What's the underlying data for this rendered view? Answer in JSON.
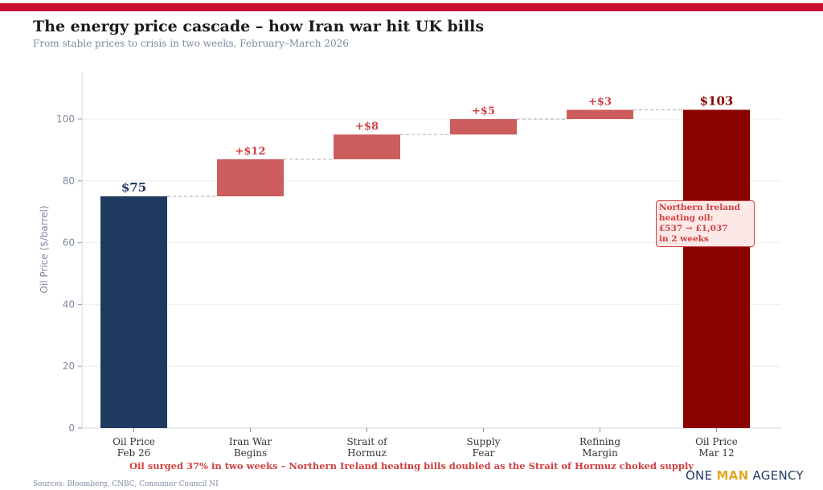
{
  "header": {
    "title": "The energy price cascade – how Iran war hit UK bills",
    "subtitle": "From stable prices to crisis in two weeks, February–March 2026"
  },
  "colors": {
    "accent_bar": "#c8102e",
    "start_bar": "#1e3a5f",
    "increase_bar": "#cd5c5c",
    "end_bar": "#8b0000",
    "increase_label": "#d04040"
  },
  "chart_data": {
    "type": "bar",
    "subtype": "waterfall",
    "title": "The energy price cascade – how Iran war hit UK bills",
    "subtitle": "From stable prices to crisis in two weeks, February–March 2026",
    "xlabel": "",
    "ylabel": "Oil Price ($/barrel)",
    "ylim": [
      0,
      115
    ],
    "yticks": [
      0,
      20,
      40,
      60,
      80,
      100
    ],
    "grid": true,
    "categories": [
      "Oil Price\nFeb 26",
      "Iran War\nBegins",
      "Strait of\nHormuz",
      "Supply\nFear",
      "Refining\nMargin",
      "Oil Price\nMar 12"
    ],
    "steps": [
      {
        "category": "Oil Price Feb 26",
        "kind": "total",
        "start": 0,
        "end": 75,
        "label": "$75"
      },
      {
        "category": "Iran War Begins",
        "kind": "increase",
        "start": 75,
        "end": 87,
        "label": "+$12"
      },
      {
        "category": "Strait of Hormuz",
        "kind": "increase",
        "start": 87,
        "end": 95,
        "label": "+$8"
      },
      {
        "category": "Supply Fear",
        "kind": "increase",
        "start": 95,
        "end": 100,
        "label": "+$5"
      },
      {
        "category": "Refining Margin",
        "kind": "increase",
        "start": 100,
        "end": 103,
        "label": "+$3"
      },
      {
        "category": "Oil Price Mar 12",
        "kind": "total",
        "start": 0,
        "end": 103,
        "label": "$103"
      }
    ],
    "annotation": {
      "lines": [
        "Northern Ireland",
        "heating oil:",
        "£537 → £1,037",
        "in 2 weeks"
      ]
    }
  },
  "footer": {
    "note": "Oil surged 37% in two weeks – Northern Ireland heating bills doubled as the Strait of Hormuz choked supply",
    "sources": "Sources: Bloomberg, CNBC, Consumer Council NI",
    "brand": [
      "ONE ",
      "MAN",
      " AGENCY"
    ]
  }
}
